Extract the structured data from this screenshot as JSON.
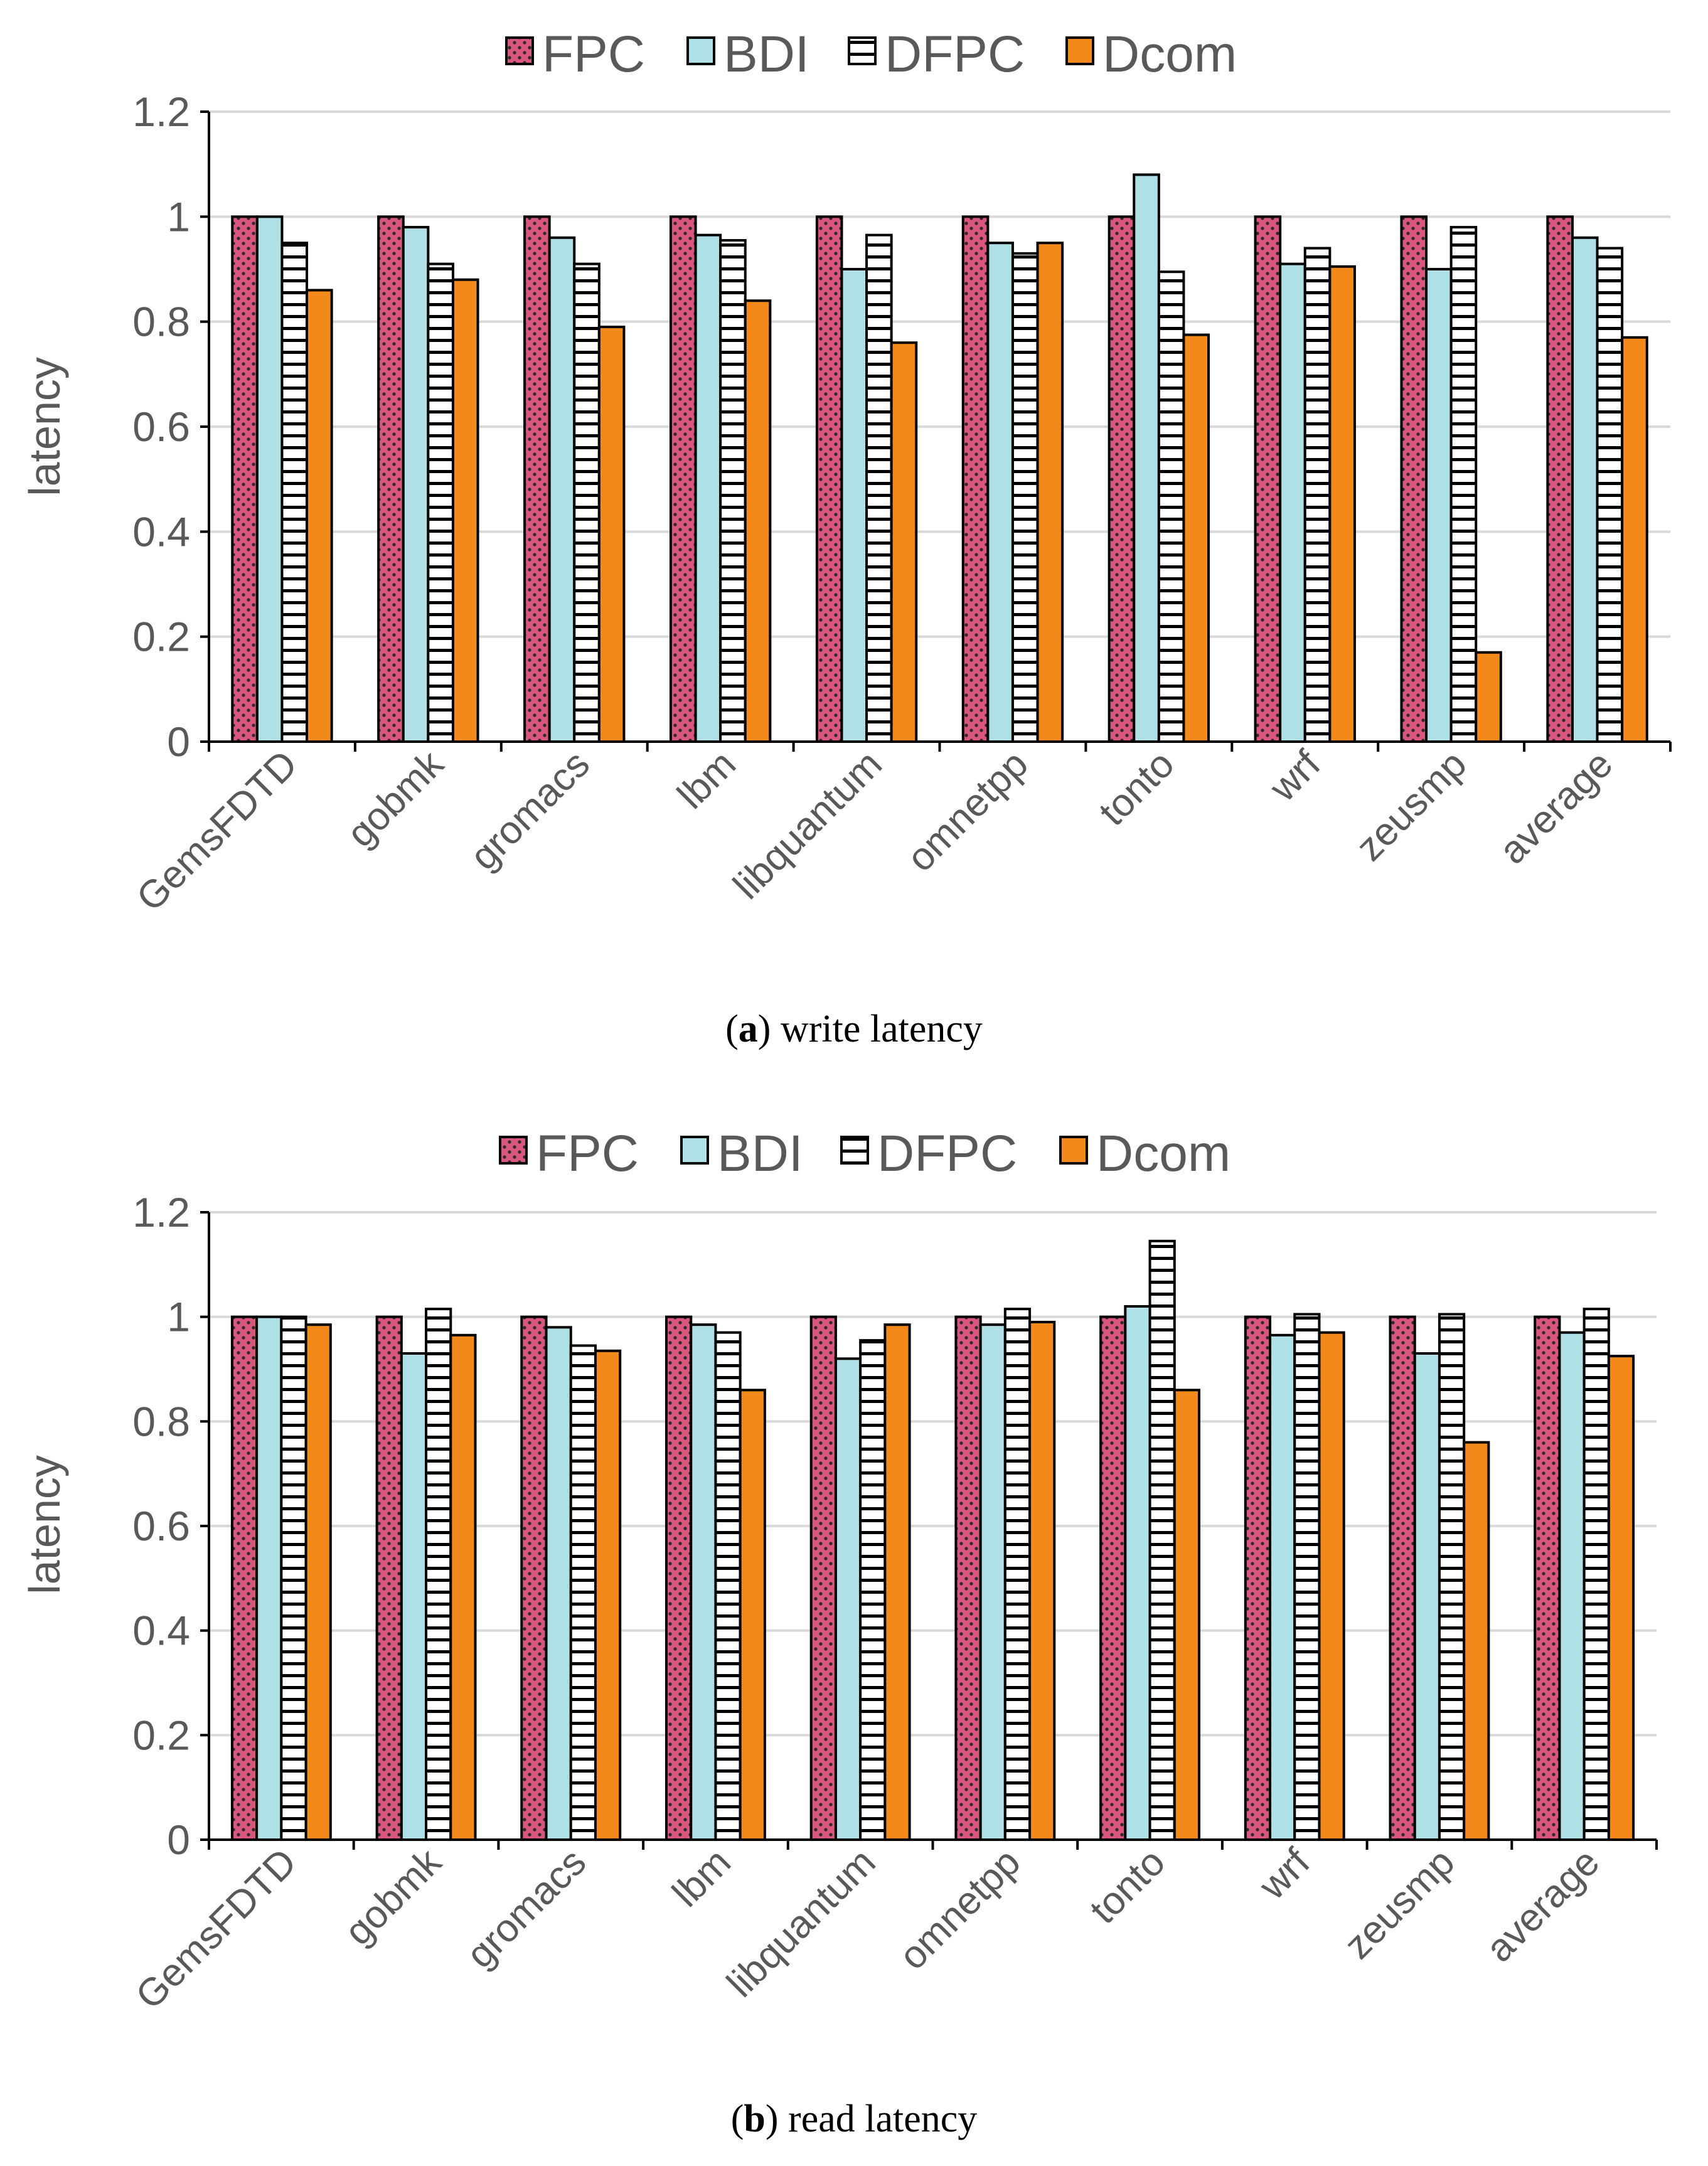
{
  "colors": {
    "FPC": "#d9567f",
    "BDI": "#aee0e6",
    "DFPC": "#ffffff",
    "Dcom": "#f2891a",
    "grid": "#d9d9d9",
    "text": "#595959"
  },
  "chart_data": [
    {
      "type": "bar",
      "caption_label": "a",
      "caption_text": "write latency",
      "ylabel": "latency",
      "ylim": [
        0,
        1.2
      ],
      "yticks": [
        "0",
        "0.2",
        "0.4",
        "0.6",
        "0.8",
        "1",
        "1.2"
      ],
      "legend_position": "top-center",
      "categories": [
        "GemsFDTD",
        "gobmk",
        "gromacs",
        "lbm",
        "libquantum",
        "omnetpp",
        "tonto",
        "wrf",
        "zeusmp",
        "average"
      ],
      "series": [
        {
          "name": "FPC",
          "values": [
            1,
            1,
            1,
            1,
            1,
            1,
            1,
            1,
            1,
            1
          ]
        },
        {
          "name": "BDI",
          "values": [
            1,
            0.98,
            0.96,
            0.965,
            0.9,
            0.95,
            1.08,
            0.91,
            0.9,
            0.96
          ]
        },
        {
          "name": "DFPC",
          "values": [
            0.95,
            0.91,
            0.91,
            0.955,
            0.965,
            0.93,
            0.895,
            0.94,
            0.98,
            0.94
          ]
        },
        {
          "name": "Dcom",
          "values": [
            0.86,
            0.88,
            0.79,
            0.84,
            0.76,
            0.95,
            0.775,
            0.905,
            0.17,
            0.77
          ]
        }
      ]
    },
    {
      "type": "bar",
      "caption_label": "b",
      "caption_text": "read latency",
      "ylabel": "latency",
      "ylim": [
        0,
        1.2
      ],
      "yticks": [
        "0",
        "0.2",
        "0.4",
        "0.6",
        "0.8",
        "1",
        "1.2"
      ],
      "legend_position": "top-center",
      "categories": [
        "GemsFDTD",
        "gobmk",
        "gromacs",
        "lbm",
        "libquantum",
        "omnetpp",
        "tonto",
        "wrf",
        "zeusmp",
        "average"
      ],
      "series": [
        {
          "name": "FPC",
          "values": [
            1,
            1,
            1,
            1,
            1,
            1,
            1,
            1,
            1,
            1
          ]
        },
        {
          "name": "BDI",
          "values": [
            1,
            0.93,
            0.98,
            0.985,
            0.92,
            0.985,
            1.02,
            0.965,
            0.93,
            0.97
          ]
        },
        {
          "name": "DFPC",
          "values": [
            1,
            1.015,
            0.945,
            0.97,
            0.955,
            1.015,
            1.145,
            1.005,
            1.005,
            1.015
          ]
        },
        {
          "name": "Dcom",
          "values": [
            0.985,
            0.965,
            0.935,
            0.86,
            0.985,
            0.99,
            0.86,
            0.97,
            0.76,
            0.925
          ]
        }
      ]
    }
  ]
}
